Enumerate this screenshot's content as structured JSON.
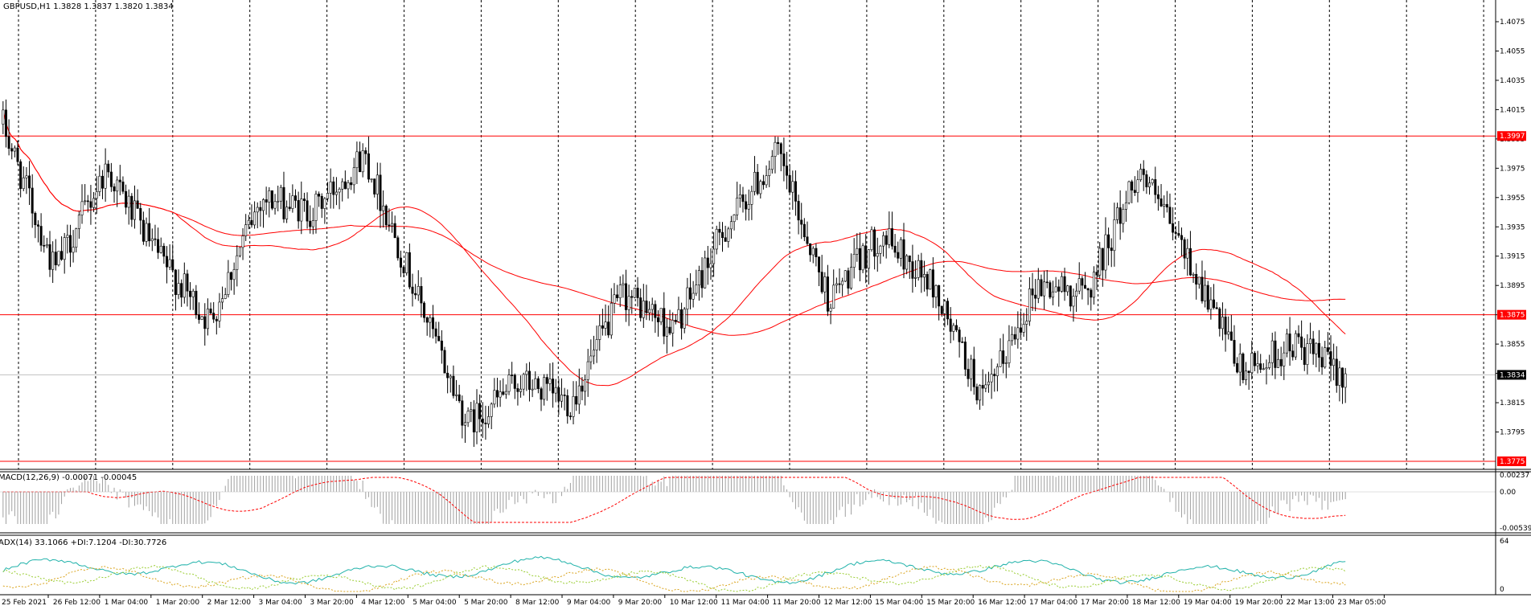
{
  "colors": {
    "background": "#ffffff",
    "grid": "#000000",
    "candle": "#000000",
    "ma": "#ff0000",
    "level_line": "#ff0000",
    "level_tag": "#ff0000",
    "current_tag": "#000000",
    "macd_hist": "#a0a0a0",
    "macd_signal": "#ff0000",
    "adx_main": "#20b2aa",
    "adx_plus": "#9acd32",
    "adx_minus": "#daa520"
  },
  "price_panel": {
    "header": "GBPUSD,H1  1.3828 1.3837 1.3820 1.3834",
    "ticks": [
      "1.4075",
      "1.4055",
      "1.4035",
      "1.4015",
      "1.3995",
      "1.3975",
      "1.3955",
      "1.3935",
      "1.3915",
      "1.3895",
      "1.3875",
      "1.3855",
      "1.3835",
      "1.3815",
      "1.3795"
    ],
    "levels": [
      "1.3997",
      "1.3875",
      "1.3775"
    ],
    "current": "1.3834"
  },
  "macd_panel": {
    "header": "MACD(12,26,9) -0.00071 -0.00045",
    "ticks": [
      "0.00237",
      "0.00",
      "-0.00539"
    ]
  },
  "adx_panel": {
    "header": "ADX(14) 33.1066 +DI:7.1204 -DI:30.7726",
    "ticks": [
      "64",
      "0"
    ]
  },
  "time_axis": {
    "labels": [
      "25 Feb 2021",
      "26 Feb 12:00",
      "1 Mar 04:00",
      "1 Mar 20:00",
      "2 Mar 12:00",
      "3 Mar 04:00",
      "3 Mar 20:00",
      "4 Mar 12:00",
      "5 Mar 04:00",
      "5 Mar 20:00",
      "8 Mar 12:00",
      "9 Mar 04:00",
      "9 Mar 20:00",
      "10 Mar 12:00",
      "11 Mar 04:00",
      "11 Mar 20:00",
      "12 Mar 12:00",
      "15 Mar 04:00",
      "15 Mar 20:00",
      "16 Mar 12:00",
      "17 Mar 04:00",
      "17 Mar 20:00",
      "18 Mar 12:00",
      "19 Mar 04:00",
      "19 Mar 20:00",
      "22 Mar 13:00",
      "23 Mar 05:00"
    ]
  },
  "chart_data": {
    "type": "candlestick",
    "symbol": "GBPUSD",
    "timeframe": "H1",
    "ohlc_last": {
      "open": 1.3828,
      "high": 1.3837,
      "low": 1.382,
      "close": 1.3834
    },
    "ylim": [
      1.3775,
      1.4085
    ],
    "horizontal_levels": [
      1.3997,
      1.3875,
      1.3775
    ],
    "price_path": [
      {
        "t": "25 Feb 2021",
        "price": 1.4005
      },
      {
        "t": "26 Feb 12:00",
        "price": 1.3905
      },
      {
        "t": "1 Mar 04:00",
        "price": 1.3975
      },
      {
        "t": "1 Mar 20:00",
        "price": 1.3915
      },
      {
        "t": "2 Mar 12:00",
        "price": 1.387
      },
      {
        "t": "3 Mar 04:00",
        "price": 1.3955
      },
      {
        "t": "3 Mar 20:00",
        "price": 1.3945
      },
      {
        "t": "4 Mar 12:00",
        "price": 1.3985
      },
      {
        "t": "5 Mar 04:00",
        "price": 1.389
      },
      {
        "t": "5 Mar 20:00",
        "price": 1.38
      },
      {
        "t": "8 Mar 12:00",
        "price": 1.383
      },
      {
        "t": "9 Mar 04:00",
        "price": 1.3815
      },
      {
        "t": "9 Mar 20:00",
        "price": 1.389
      },
      {
        "t": "10 Mar 12:00",
        "price": 1.3865
      },
      {
        "t": "11 Mar 04:00",
        "price": 1.3935
      },
      {
        "t": "11 Mar 20:00",
        "price": 1.3985
      },
      {
        "t": "12 Mar 12:00",
        "price": 1.3885
      },
      {
        "t": "15 Mar 04:00",
        "price": 1.393
      },
      {
        "t": "15 Mar 20:00",
        "price": 1.3895
      },
      {
        "t": "16 Mar 12:00",
        "price": 1.3815
      },
      {
        "t": "17 Mar 04:00",
        "price": 1.3895
      },
      {
        "t": "17 Mar 20:00",
        "price": 1.389
      },
      {
        "t": "18 Mar 12:00",
        "price": 1.3975
      },
      {
        "t": "19 Mar 04:00",
        "price": 1.391
      },
      {
        "t": "19 Mar 20:00",
        "price": 1.3835
      },
      {
        "t": "22 Mar 13:00",
        "price": 1.3855
      },
      {
        "t": "23 Mar 05:00",
        "price": 1.3834
      }
    ],
    "macd": {
      "main": -0.00071,
      "signal": -0.00045,
      "ylim": [
        -0.00539,
        0.00237
      ]
    },
    "adx": {
      "adx": 33.1066,
      "plus_di": 7.1204,
      "minus_di": 30.7726,
      "ylim": [
        0,
        64
      ]
    }
  }
}
